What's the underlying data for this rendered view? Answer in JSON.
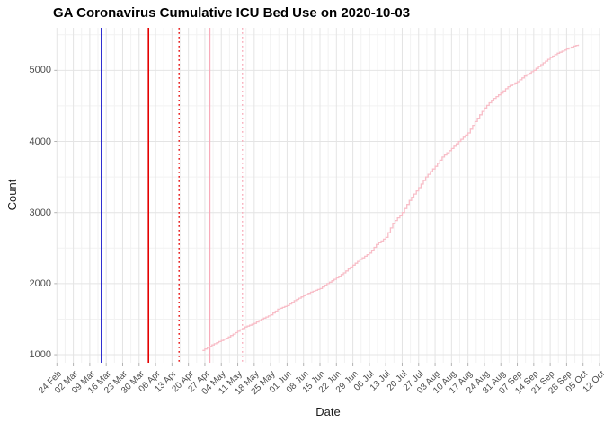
{
  "chart_data": {
    "type": "line",
    "title": "GA Coronavirus Cumulative ICU Bed Use on 2020-10-03",
    "xlabel": "Date",
    "ylabel": "Count",
    "legend": "none",
    "grid": true,
    "x_tick_labels": [
      "24 Feb",
      "02 Mar",
      "09 Mar",
      "16 Mar",
      "23 Mar",
      "30 Mar",
      "06 Apr",
      "13 Apr",
      "20 Apr",
      "27 Apr",
      "04 May",
      "11 May",
      "18 May",
      "25 May",
      "01 Jun",
      "08 Jun",
      "15 Jun",
      "22 Jun",
      "29 Jun",
      "06 Jul",
      "13 Jul",
      "20 Jul",
      "27 Jul",
      "03 Aug",
      "10 Aug",
      "17 Aug",
      "24 Aug",
      "31 Aug",
      "07 Sep",
      "14 Sep",
      "21 Sep",
      "28 Sep",
      "05 Oct",
      "12 Oct"
    ],
    "x_days_per_tick": 7,
    "xlim_days": [
      0,
      231
    ],
    "y_ticks": [
      1000,
      2000,
      3000,
      4000,
      5000
    ],
    "y_minor_step": 500,
    "ylim": [
      887,
      5598
    ],
    "series": [
      {
        "name": "cumulative-icu-bed-use",
        "color": "#f8bec8",
        "points_day_value": [
          [
            62,
            1060
          ],
          [
            65,
            1120
          ],
          [
            68,
            1170
          ],
          [
            70,
            1200
          ],
          [
            73,
            1250
          ],
          [
            77,
            1330
          ],
          [
            80,
            1390
          ],
          [
            84,
            1440
          ],
          [
            87,
            1500
          ],
          [
            91,
            1560
          ],
          [
            94,
            1640
          ],
          [
            98,
            1690
          ],
          [
            101,
            1760
          ],
          [
            105,
            1830
          ],
          [
            108,
            1880
          ],
          [
            112,
            1930
          ],
          [
            115,
            2000
          ],
          [
            119,
            2080
          ],
          [
            122,
            2150
          ],
          [
            126,
            2260
          ],
          [
            129,
            2340
          ],
          [
            133,
            2430
          ],
          [
            136,
            2550
          ],
          [
            140,
            2650
          ],
          [
            143,
            2850
          ],
          [
            147,
            3000
          ],
          [
            150,
            3170
          ],
          [
            154,
            3350
          ],
          [
            157,
            3500
          ],
          [
            161,
            3650
          ],
          [
            164,
            3780
          ],
          [
            168,
            3900
          ],
          [
            171,
            4000
          ],
          [
            175,
            4120
          ],
          [
            178,
            4280
          ],
          [
            182,
            4470
          ],
          [
            185,
            4580
          ],
          [
            189,
            4680
          ],
          [
            192,
            4770
          ],
          [
            196,
            4840
          ],
          [
            199,
            4920
          ],
          [
            203,
            5000
          ],
          [
            206,
            5080
          ],
          [
            210,
            5180
          ],
          [
            213,
            5240
          ],
          [
            217,
            5300
          ],
          [
            220,
            5340
          ],
          [
            222,
            5360
          ]
        ]
      }
    ],
    "event_lines": [
      {
        "date": "2020-03-14",
        "day": 19,
        "style": "solid",
        "color": "#0a0ac8",
        "width": 1.6
      },
      {
        "date": "2020-04-03",
        "day": 39,
        "style": "solid",
        "color": "#e60000",
        "width": 1.6
      },
      {
        "date": "2020-04-16",
        "day": 52,
        "style": "dotted",
        "color": "#e60000",
        "width": 1.3
      },
      {
        "date": "2020-04-29",
        "day": 65,
        "style": "solid",
        "color": "#f7aab9",
        "width": 2
      },
      {
        "date": "2020-05-13",
        "day": 79,
        "style": "dotted",
        "color": "#f7aab9",
        "width": 1.3
      }
    ]
  },
  "colors": {
    "background": "#ffffff",
    "grid_major": "#e4e4e4",
    "grid_minor": "#f2f2f2",
    "tick_mark": "#b3b3b3",
    "axis_text": "#4d4d4d",
    "axis_title": "#1a1a1a",
    "title_text": "#000000"
  }
}
